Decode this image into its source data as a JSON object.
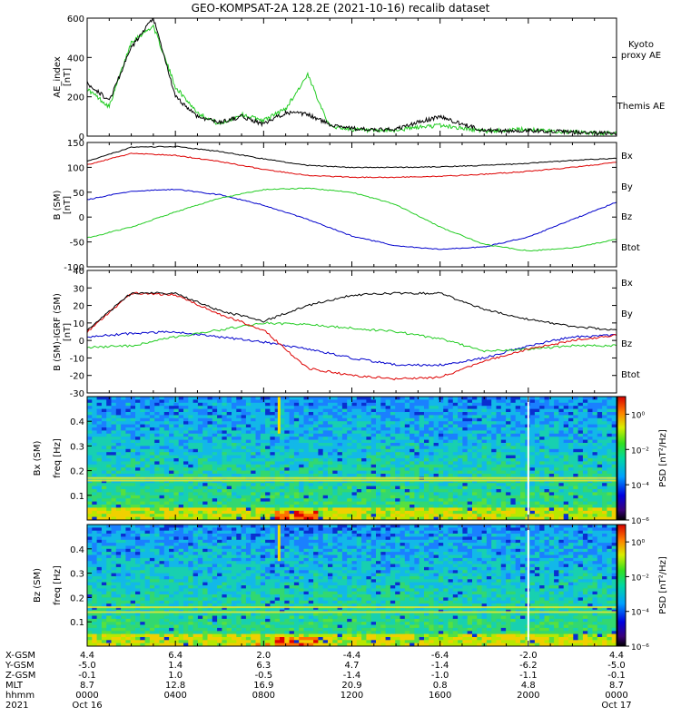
{
  "title": "GEO-KOMPSAT-2A 128.2E (2021-10-16) recalib dataset",
  "panels": {
    "ae": {
      "ylabel": "AE_index",
      "unit": "[nT]",
      "legend": [
        {
          "label": "Kyoto",
          "color": "#22cc22"
        },
        {
          "label": "proxy AE",
          "color": "#22cc22"
        },
        {
          "label": "Themis AE",
          "color": "#000000"
        }
      ],
      "yticks": [
        "600",
        "400",
        "200",
        "0"
      ]
    },
    "b": {
      "ylabel": "B (SM)",
      "unit": "[nT]",
      "legend": [
        {
          "label": "Bx",
          "color": "#0000cc"
        },
        {
          "label": "By",
          "color": "#22cc22"
        },
        {
          "label": "Bz",
          "color": "#dd0000"
        },
        {
          "label": "Btot",
          "color": "#000000"
        }
      ],
      "yticks": [
        "150",
        "100",
        "50",
        "0",
        "-50",
        "-100"
      ]
    },
    "db": {
      "ylabel": "B (SM)-IGRF (SM)",
      "unit": "[nT]",
      "legend": [
        {
          "label": "Bx",
          "color": "#0000cc"
        },
        {
          "label": "By",
          "color": "#22cc22"
        },
        {
          "label": "Bz",
          "color": "#dd0000"
        },
        {
          "label": "Btot",
          "color": "#000000"
        }
      ],
      "yticks": [
        "40",
        "30",
        "20",
        "10",
        "0",
        "-10",
        "-20",
        "-30"
      ]
    },
    "spec_bx": {
      "ylabel": "Bx (SM)",
      "flabel": "freq [Hz]",
      "yticks": [
        "0.4",
        "0.3",
        "0.2",
        "0.1"
      ]
    },
    "spec_bz": {
      "ylabel": "Bz (SM)",
      "flabel": "freq [Hz]",
      "yticks": [
        "0.4",
        "0.3",
        "0.2",
        "0.1"
      ]
    },
    "colorbar": {
      "label": "PSD [nT²/Hz]",
      "ticks": [
        "10⁰",
        "10⁻²",
        "10⁻⁴",
        "10⁻⁶"
      ]
    }
  },
  "axis": {
    "row_labels": [
      "X-GSM",
      "Y-GSM",
      "Z-GSM",
      "MLT",
      "hhmm",
      "2021"
    ],
    "columns": [
      [
        "4.4",
        "-5.0",
        "-0.1",
        "8.7",
        "0000",
        "Oct 16"
      ],
      [
        "6.4",
        "1.4",
        "1.0",
        "12.8",
        "0400",
        ""
      ],
      [
        "2.0",
        "6.3",
        "-0.5",
        "16.9",
        "0800",
        ""
      ],
      [
        "-4.4",
        "4.7",
        "-1.4",
        "20.9",
        "1200",
        ""
      ],
      [
        "-6.4",
        "-1.4",
        "-1.0",
        "0.8",
        "1600",
        ""
      ],
      [
        "-2.0",
        "-6.2",
        "-1.1",
        "4.8",
        "2000",
        ""
      ],
      [
        "4.4",
        "-5.0",
        "-0.1",
        "8.7",
        "0000",
        "Oct 17"
      ]
    ]
  },
  "chart_data": [
    {
      "type": "line",
      "title": "GEO-KOMPSAT-2A 128.2E (2021-10-16) recalib dataset",
      "ylabel": "AE_index [nT]",
      "ylim": [
        0,
        600
      ],
      "x_hours": [
        0,
        1,
        2,
        3,
        4,
        5,
        6,
        7,
        8,
        9,
        10,
        11,
        12,
        13,
        14,
        15,
        16,
        17,
        18,
        19,
        20,
        21,
        22,
        23,
        24
      ],
      "series": [
        {
          "name": "Kyoto proxy AE",
          "color": "#22cc22",
          "values": [
            240,
            150,
            480,
            560,
            250,
            120,
            60,
            110,
            80,
            140,
            310,
            50,
            35,
            25,
            30,
            45,
            55,
            40,
            25,
            30,
            35,
            25,
            20,
            15,
            15
          ]
        },
        {
          "name": "Themis AE",
          "color": "#000000",
          "values": [
            270,
            180,
            450,
            600,
            200,
            100,
            70,
            100,
            60,
            120,
            110,
            60,
            40,
            30,
            35,
            70,
            100,
            60,
            30,
            25,
            30,
            25,
            20,
            15,
            15
          ]
        }
      ]
    },
    {
      "type": "line",
      "ylabel": "B (SM) [nT]",
      "ylim": [
        -100,
        150
      ],
      "x_hours": [
        0,
        2,
        4,
        6,
        8,
        10,
        12,
        14,
        16,
        18,
        20,
        22,
        24
      ],
      "series": [
        {
          "name": "Bx",
          "color": "#0000cc",
          "values": [
            35,
            52,
            56,
            45,
            24,
            -5,
            -38,
            -58,
            -65,
            -60,
            -40,
            -5,
            30
          ]
        },
        {
          "name": "By",
          "color": "#22cc22",
          "values": [
            -42,
            -20,
            10,
            38,
            55,
            58,
            50,
            25,
            -20,
            -55,
            -68,
            -62,
            -45
          ]
        },
        {
          "name": "Bz",
          "color": "#dd0000",
          "values": [
            105,
            128,
            124,
            112,
            96,
            84,
            80,
            80,
            82,
            86,
            92,
            100,
            110
          ]
        },
        {
          "name": "Btot",
          "color": "#000000",
          "values": [
            112,
            140,
            142,
            132,
            117,
            104,
            100,
            100,
            101,
            104,
            108,
            114,
            118
          ]
        }
      ]
    },
    {
      "type": "line",
      "ylabel": "B (SM)-IGRF (SM) [nT]",
      "ylim": [
        -30,
        40
      ],
      "x_hours": [
        0,
        2,
        4,
        6,
        8,
        10,
        12,
        14,
        16,
        18,
        20,
        22,
        24
      ],
      "series": [
        {
          "name": "Bx",
          "color": "#0000cc",
          "values": [
            2,
            4,
            5,
            2,
            -1,
            -5,
            -10,
            -14,
            -14,
            -10,
            -3,
            2,
            3
          ]
        },
        {
          "name": "By",
          "color": "#22cc22",
          "values": [
            -4,
            -3,
            2,
            6,
            10,
            9,
            7,
            5,
            1,
            -6,
            -5,
            -3,
            -3
          ]
        },
        {
          "name": "Bz",
          "color": "#dd0000",
          "values": [
            5,
            27,
            26,
            15,
            6,
            -16,
            -20,
            -22,
            -21,
            -12,
            -5,
            0,
            3
          ]
        },
        {
          "name": "Btot",
          "color": "#000000",
          "values": [
            6,
            27,
            27,
            17,
            11,
            20,
            26,
            27,
            27,
            18,
            12,
            8,
            6
          ]
        }
      ]
    },
    {
      "type": "heatmap",
      "ylabel": "Bx (SM) freq [Hz]",
      "ylim": [
        0,
        0.5
      ],
      "zlabel": "PSD [nT^2/Hz]",
      "zlim_log10": [
        -6,
        1
      ],
      "features_hz": [
        0.16,
        0.17
      ]
    },
    {
      "type": "heatmap",
      "ylabel": "Bz (SM) freq [Hz]",
      "ylim": [
        0,
        0.5
      ],
      "zlabel": "PSD [nT^2/Hz]",
      "zlim_log10": [
        -6,
        1
      ],
      "features_hz": [
        0.14,
        0.16
      ]
    }
  ]
}
